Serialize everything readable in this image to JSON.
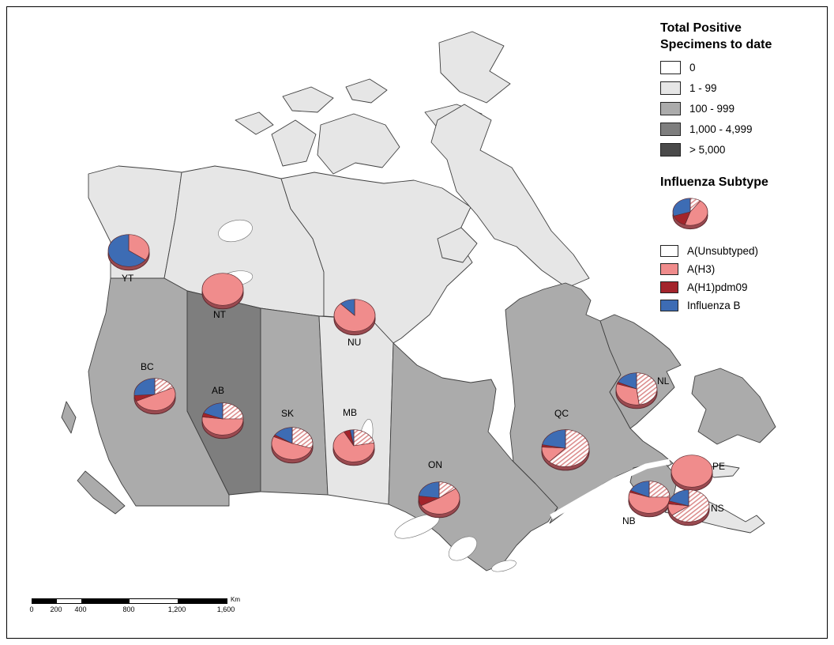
{
  "legend": {
    "title_line1": "Total Positive",
    "title_line2": "Specimens to date",
    "classes": [
      {
        "label": "0",
        "color": "#FFFFFF"
      },
      {
        "label": "1 - 99",
        "color": "#E6E6E6"
      },
      {
        "label": "100 - 999",
        "color": "#ABABAB"
      },
      {
        "label": "1,000 - 4,999",
        "color": "#7E7E7E"
      },
      {
        "label": "> 5,000",
        "color": "#4A4A4A"
      }
    ],
    "subtype_title": "Influenza Subtype",
    "subtypes": [
      {
        "label": "A(Unsubtyped)",
        "hatch": true,
        "color": "#DB8C8C"
      },
      {
        "label": "A(H3)",
        "color": "#F08C8C"
      },
      {
        "label": "A(H1)pdm09",
        "color": "#A3242B"
      },
      {
        "label": "Influenza B",
        "color": "#3D6CB4"
      }
    ],
    "sample_shares": [
      10,
      45,
      15,
      30
    ]
  },
  "scalebar": {
    "labels": [
      "0",
      "200",
      "400",
      "800",
      "1,200",
      "1,600"
    ],
    "unit": "Km"
  },
  "regions": {
    "YT": {
      "class": "1 - 99",
      "fill": "#E6E6E6"
    },
    "NT": {
      "class": "1 - 99",
      "fill": "#E6E6E6"
    },
    "NU": {
      "class": "1 - 99",
      "fill": "#E6E6E6"
    },
    "BC": {
      "class": "100 - 999",
      "fill": "#ABABAB"
    },
    "AB": {
      "class": "1,000 - 4,999",
      "fill": "#7E7E7E"
    },
    "SK": {
      "class": "100 - 999",
      "fill": "#ABABAB"
    },
    "MB": {
      "class": "1 - 99",
      "fill": "#E6E6E6"
    },
    "ON": {
      "class": "100 - 999",
      "fill": "#ABABAB"
    },
    "QC": {
      "class": "100 - 999",
      "fill": "#ABABAB"
    },
    "NL": {
      "class": "100 - 999",
      "fill": "#ABABAB"
    },
    "PE": {
      "class": "1 - 99",
      "fill": "#E6E6E6"
    },
    "NB": {
      "class": "100 - 999",
      "fill": "#ABABAB"
    },
    "NS": {
      "class": "1 - 99",
      "fill": "#E6E6E6"
    }
  },
  "chart_data": {
    "type": "pie",
    "subtypes": [
      "A(Unsubtyped)",
      "A(H3)",
      "A(H1)pdm09",
      "Influenza B"
    ],
    "pies": [
      {
        "region": "YT",
        "shares_pct": [
          0,
          35,
          0,
          65
        ]
      },
      {
        "region": "NT",
        "shares_pct": [
          0,
          100,
          0,
          0
        ]
      },
      {
        "region": "NU",
        "shares_pct": [
          0,
          88,
          0,
          12
        ]
      },
      {
        "region": "BC",
        "shares_pct": [
          18,
          50,
          6,
          26
        ]
      },
      {
        "region": "AB",
        "shares_pct": [
          25,
          52,
          4,
          19
        ]
      },
      {
        "region": "SK",
        "shares_pct": [
          30,
          52,
          2,
          16
        ]
      },
      {
        "region": "MB",
        "shares_pct": [
          22,
          70,
          5,
          3
        ]
      },
      {
        "region": "ON",
        "shares_pct": [
          15,
          52,
          10,
          23
        ]
      },
      {
        "region": "QC",
        "shares_pct": [
          62,
          14,
          2,
          22
        ]
      },
      {
        "region": "NL",
        "shares_pct": [
          48,
          32,
          2,
          18
        ]
      },
      {
        "region": "PE",
        "shares_pct": [
          0,
          100,
          0,
          0
        ]
      },
      {
        "region": "NB",
        "shares_pct": [
          25,
          55,
          2,
          18
        ]
      },
      {
        "region": "NS",
        "shares_pct": [
          65,
          12,
          3,
          20
        ]
      }
    ]
  }
}
